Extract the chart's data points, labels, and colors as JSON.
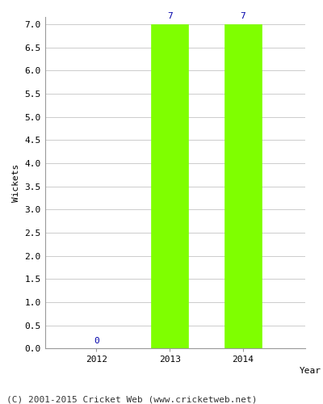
{
  "years": [
    2012,
    2013,
    2014
  ],
  "values": [
    0,
    7,
    7
  ],
  "bar_color": "#7fff00",
  "bar_edge_color": "#7fff00",
  "label_color": "#0000aa",
  "ylabel": "Wickets",
  "xlabel": "Year",
  "ylim": [
    0,
    7.0
  ],
  "ytick_step": 0.5,
  "background_color": "#ffffff",
  "grid_color": "#cccccc",
  "caption": "(C) 2001-2015 Cricket Web (www.cricketweb.net)",
  "bar_width": 0.5,
  "label_fontsize": 8,
  "axis_fontsize": 8,
  "caption_fontsize": 8,
  "xlim_left": 2011.3,
  "xlim_right": 2014.85
}
